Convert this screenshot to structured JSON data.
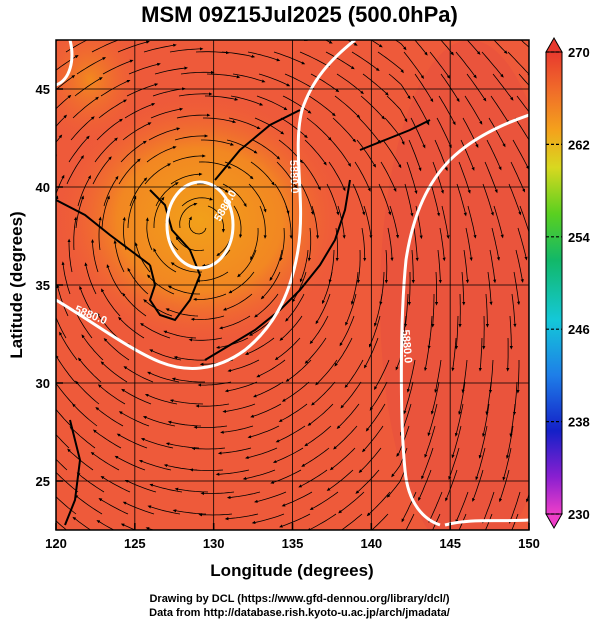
{
  "title": "MSM 09Z15Jul2025 (500.0hPa)",
  "credits": {
    "line1": "Drawing by DCL (https://www.gfd-dennou.org/library/dcl/)",
    "line2": "Data from http://database.rish.kyoto-u.ac.jp/arch/jmadata/"
  },
  "chart_data": {
    "type": "heatmap",
    "xlabel": "Longitude (degrees)",
    "ylabel": "Latitude  (degrees)",
    "xlim": [
      120,
      150
    ],
    "ylim": [
      22.5,
      47.5
    ],
    "xticks": [
      120,
      125,
      130,
      135,
      140,
      145,
      150
    ],
    "yticks": [
      25,
      30,
      35,
      40,
      45
    ],
    "grid": true,
    "colorbar": {
      "range": [
        230,
        270
      ],
      "ticks": [
        230,
        238,
        246,
        254,
        262,
        270
      ],
      "placement": "right"
    },
    "contour_labels": [
      "5880.0",
      "5880.0",
      "5880.0",
      "5880.0"
    ],
    "colors": {
      "warm_background": "#f0553a",
      "warm_core": "#f28a1e",
      "contour": "#ffffff",
      "streamline": "#000000"
    }
  }
}
